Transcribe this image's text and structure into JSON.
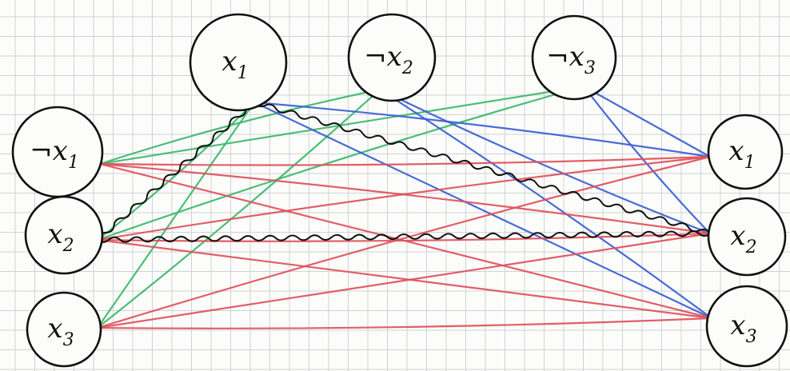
{
  "colors": {
    "green": "#3cb86a",
    "blue": "#3a5fd0",
    "red": "#e0505a",
    "ink": "#111111"
  },
  "top_nodes": [
    {
      "id": "t1",
      "label": "x",
      "sub": "1"
    },
    {
      "id": "t2",
      "label": "¬x",
      "sub": "2"
    },
    {
      "id": "t3",
      "label": "¬x",
      "sub": "3"
    }
  ],
  "left_nodes": [
    {
      "id": "l1",
      "label": "¬x",
      "sub": "1"
    },
    {
      "id": "l2",
      "label": "x",
      "sub": "2"
    },
    {
      "id": "l3",
      "label": "x",
      "sub": "3"
    }
  ],
  "right_nodes": [
    {
      "id": "r1",
      "label": "x",
      "sub": "1"
    },
    {
      "id": "r2",
      "label": "x",
      "sub": "2"
    },
    {
      "id": "r3",
      "label": "x",
      "sub": "3"
    }
  ],
  "edges": [
    {
      "from": "l1",
      "to": "t2",
      "color": "green"
    },
    {
      "from": "l1",
      "to": "t3",
      "color": "green"
    },
    {
      "from": "l2",
      "to": "t1",
      "color": "green"
    },
    {
      "from": "l2",
      "to": "t3",
      "color": "green"
    },
    {
      "from": "l3",
      "to": "t1",
      "color": "green"
    },
    {
      "from": "l3",
      "to": "t2",
      "color": "green"
    },
    {
      "from": "t1",
      "to": "r1",
      "color": "blue"
    },
    {
      "from": "t1",
      "to": "r3",
      "color": "blue"
    },
    {
      "from": "t2",
      "to": "r2",
      "color": "blue"
    },
    {
      "from": "t2",
      "to": "r3",
      "color": "blue"
    },
    {
      "from": "t3",
      "to": "r1",
      "color": "blue"
    },
    {
      "from": "t3",
      "to": "r2",
      "color": "blue"
    },
    {
      "from": "l1",
      "to": "r2",
      "color": "red"
    },
    {
      "from": "l1",
      "to": "r3",
      "color": "red"
    },
    {
      "from": "l1",
      "to": "r1",
      "color": "red"
    },
    {
      "from": "l2",
      "to": "r1",
      "color": "red"
    },
    {
      "from": "l2",
      "to": "r3",
      "color": "red"
    },
    {
      "from": "l2",
      "to": "r2",
      "color": "red"
    },
    {
      "from": "l3",
      "to": "r1",
      "color": "red"
    },
    {
      "from": "l3",
      "to": "r2",
      "color": "red"
    },
    {
      "from": "l3",
      "to": "r3",
      "color": "red"
    }
  ],
  "wavy_edges": [
    {
      "from": "t1",
      "to": "l2"
    },
    {
      "from": "t1",
      "to": "r2"
    },
    {
      "from": "l2",
      "to": "r2"
    }
  ]
}
